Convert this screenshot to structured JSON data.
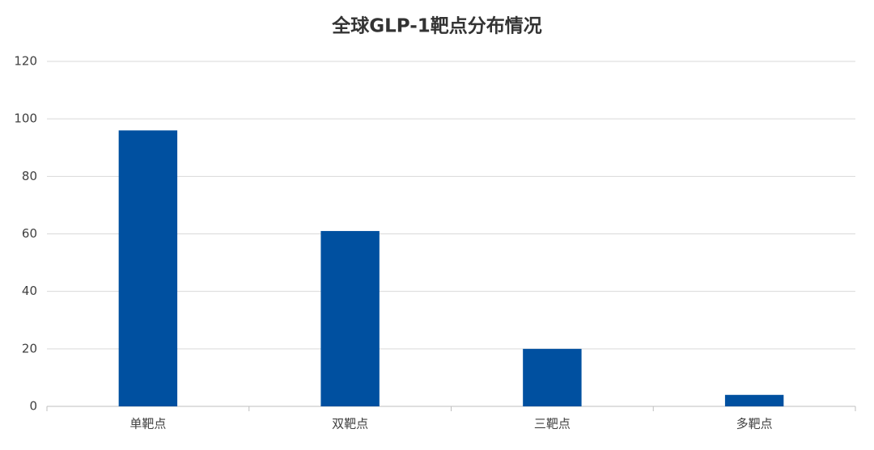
{
  "chart_data": {
    "type": "bar",
    "title": "全球GLP-1靶点分布情况",
    "categories": [
      "单靶点",
      "双靶点",
      "三靶点",
      "多靶点"
    ],
    "values": [
      96,
      61,
      20,
      4
    ],
    "color": "#0050a0",
    "ylim": [
      0,
      120
    ],
    "yticks": [
      0,
      20,
      40,
      60,
      80,
      100,
      120
    ],
    "grid": true
  }
}
